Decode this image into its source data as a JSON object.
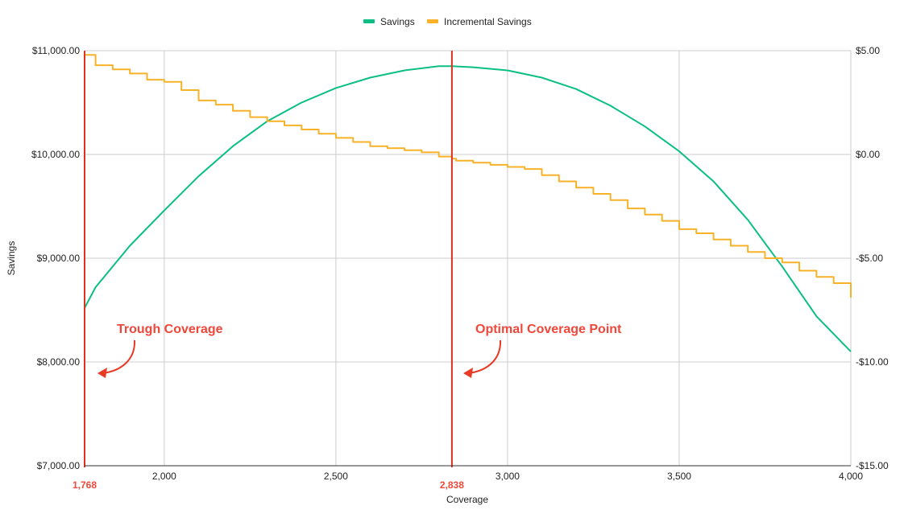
{
  "chart_data": {
    "type": "line",
    "xlabel": "Coverage",
    "ylabel": "Savings",
    "y2label": "",
    "xlim": [
      1768,
      4000
    ],
    "ylim": [
      7000,
      11000
    ],
    "y2lim": [
      -15,
      5
    ],
    "x_ticks": [
      {
        "value": 2000,
        "label": "2,000"
      },
      {
        "value": 2500,
        "label": "2,500"
      },
      {
        "value": 3000,
        "label": "3,000"
      },
      {
        "value": 3500,
        "label": "3,500"
      },
      {
        "value": 4000,
        "label": "4,000"
      }
    ],
    "y_ticks": [
      {
        "value": 7000,
        "label": "$7,000.00"
      },
      {
        "value": 8000,
        "label": "$8,000.00"
      },
      {
        "value": 9000,
        "label": "$9,000.00"
      },
      {
        "value": 10000,
        "label": "$10,000.00"
      },
      {
        "value": 11000,
        "label": "$11,000.00"
      }
    ],
    "y2_ticks": [
      {
        "value": -15,
        "label": "-$15.00"
      },
      {
        "value": -10,
        "label": "-$10.00"
      },
      {
        "value": -5,
        "label": "-$5.00"
      },
      {
        "value": 0,
        "label": "$0.00"
      },
      {
        "value": 5,
        "label": "$5.00"
      }
    ],
    "grid": true,
    "legend_position": "top-center",
    "series": [
      {
        "name": "Savings",
        "axis": "left",
        "color": "#0bbf84",
        "x": [
          1768,
          1800,
          1900,
          2000,
          2100,
          2200,
          2300,
          2400,
          2500,
          2600,
          2700,
          2800,
          2838,
          2900,
          3000,
          3100,
          3200,
          3300,
          3400,
          3500,
          3600,
          3700,
          3800,
          3900,
          4000
        ],
        "values": [
          8520,
          8720,
          9120,
          9460,
          9790,
          10080,
          10320,
          10500,
          10640,
          10740,
          10810,
          10850,
          10850,
          10840,
          10810,
          10740,
          10630,
          10470,
          10270,
          10030,
          9740,
          9370,
          8920,
          8440,
          8100
        ]
      },
      {
        "name": "Incremental Savings",
        "axis": "right",
        "color": "#f7b228",
        "step": true,
        "x": [
          1768,
          1800,
          1850,
          1900,
          1950,
          2000,
          2050,
          2100,
          2150,
          2200,
          2250,
          2300,
          2350,
          2400,
          2450,
          2500,
          2550,
          2600,
          2650,
          2700,
          2750,
          2800,
          2838,
          2850,
          2900,
          2950,
          3000,
          3050,
          3100,
          3150,
          3200,
          3250,
          3300,
          3350,
          3400,
          3450,
          3500,
          3550,
          3600,
          3650,
          3700,
          3750,
          3800,
          3850,
          3900,
          3950,
          4000
        ],
        "values": [
          4.8,
          4.3,
          4.1,
          3.9,
          3.6,
          3.5,
          3.1,
          2.6,
          2.4,
          2.1,
          1.8,
          1.6,
          1.4,
          1.2,
          1.0,
          0.8,
          0.6,
          0.4,
          0.3,
          0.2,
          0.1,
          -0.1,
          -0.2,
          -0.3,
          -0.4,
          -0.5,
          -0.6,
          -0.7,
          -1.0,
          -1.3,
          -1.6,
          -1.9,
          -2.2,
          -2.6,
          -2.9,
          -3.2,
          -3.6,
          -3.8,
          -4.1,
          -4.4,
          -4.7,
          -5.0,
          -5.2,
          -5.6,
          -5.9,
          -6.2,
          -6.9
        ]
      }
    ],
    "markers": [
      {
        "x": 1768,
        "label": "1,768",
        "color": "#e0301e"
      },
      {
        "x": 2838,
        "label": "2,838",
        "color": "#e0301e"
      }
    ],
    "annotations": [
      {
        "text": "Trough Coverage",
        "color": "#f0473a"
      },
      {
        "text": "Optimal Coverage Point",
        "color": "#f0473a"
      }
    ]
  }
}
